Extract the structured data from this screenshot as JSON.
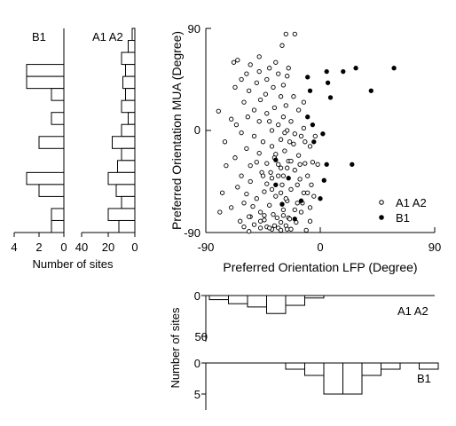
{
  "chart_data": [
    {
      "type": "scatter",
      "xlabel": "Preferred Orientation LFP (Degree)",
      "ylabel": "Preferred Orientation MUA (Degree)",
      "xlim": [
        -90,
        90
      ],
      "ylim": [
        -90,
        90
      ],
      "x_ticks": [
        "-90",
        "0",
        "90"
      ],
      "y_ticks": [
        "90",
        "0",
        "-90"
      ],
      "legend_position": "bottom-right",
      "series": [
        {
          "name": "A1 A2",
          "marker": "open-circle",
          "points": [
            [
              -27,
              85
            ],
            [
              -20,
              85
            ],
            [
              -30,
              75
            ],
            [
              -48,
              65
            ],
            [
              -68,
              60
            ],
            [
              -65,
              62
            ],
            [
              -55,
              58
            ],
            [
              -35,
              60
            ],
            [
              -25,
              55
            ],
            [
              -40,
              55
            ],
            [
              -48,
              52
            ],
            [
              -33,
              50
            ],
            [
              -58,
              50
            ],
            [
              -26,
              48
            ],
            [
              -62,
              45
            ],
            [
              -42,
              45
            ],
            [
              -50,
              42
            ],
            [
              -29,
              40
            ],
            [
              -67,
              38
            ],
            [
              -37,
              38
            ],
            [
              -56,
              35
            ],
            [
              -43,
              32
            ],
            [
              -31,
              30
            ],
            [
              -21,
              30
            ],
            [
              -47,
              27
            ],
            [
              -60,
              25
            ],
            [
              -13,
              25
            ],
            [
              -27,
              22
            ],
            [
              -36,
              20
            ],
            [
              -52,
              18
            ],
            [
              -17,
              18
            ],
            [
              -80,
              17
            ],
            [
              -42,
              15
            ],
            [
              -29,
              12
            ],
            [
              -57,
              12
            ],
            [
              -70,
              10
            ],
            [
              -23,
              8
            ],
            [
              -48,
              8
            ],
            [
              -33,
              5
            ],
            [
              -38,
              0
            ],
            [
              -13,
              2
            ],
            [
              -62,
              -2
            ],
            [
              -26,
              0
            ],
            [
              -52,
              -5
            ],
            [
              -15,
              -5
            ],
            [
              -31,
              -8
            ],
            [
              -75,
              -10
            ],
            [
              -45,
              -10
            ],
            [
              -21,
              -12
            ],
            [
              -38,
              -14
            ],
            [
              -8,
              -14
            ],
            [
              -58,
              -16
            ],
            [
              -28,
              -18
            ],
            [
              -48,
              -20
            ],
            [
              -17,
              -22
            ],
            [
              -36,
              -24
            ],
            [
              -67,
              -24
            ],
            [
              -25,
              -27
            ],
            [
              -42,
              -29
            ],
            [
              -12,
              -29
            ],
            [
              -55,
              -31
            ],
            [
              -31,
              -33
            ],
            [
              -20,
              -35
            ],
            [
              -46,
              -37
            ],
            [
              -74,
              -31
            ],
            [
              -29,
              -40
            ],
            [
              -38,
              -42
            ],
            [
              -16,
              -43
            ],
            [
              -55,
              -45
            ],
            [
              -30,
              -48
            ],
            [
              -65,
              -50
            ],
            [
              -23,
              -52
            ],
            [
              -44,
              -54
            ],
            [
              -13,
              -55
            ],
            [
              -77,
              -55
            ],
            [
              -35,
              -58
            ],
            [
              -50,
              -60
            ],
            [
              -26,
              -62
            ],
            [
              -60,
              -64
            ],
            [
              -18,
              -64
            ],
            [
              -40,
              -66
            ],
            [
              -70,
              -68
            ],
            [
              -29,
              -70
            ],
            [
              -47,
              -72
            ],
            [
              -15,
              -72
            ],
            [
              -79,
              -72
            ],
            [
              -37,
              -74
            ],
            [
              -55,
              -76
            ],
            [
              -25,
              -77
            ],
            [
              -44,
              -79
            ],
            [
              -63,
              -80
            ],
            [
              -31,
              -81
            ],
            [
              -19,
              -81
            ],
            [
              -52,
              -83
            ],
            [
              -36,
              -84
            ],
            [
              -27,
              -84
            ],
            [
              -42,
              -85
            ],
            [
              -60,
              -85
            ],
            [
              -33,
              -86
            ],
            [
              -47,
              -86
            ],
            [
              -26,
              -87
            ],
            [
              -38,
              -87
            ],
            [
              -23,
              -87
            ],
            [
              -31,
              -88
            ],
            [
              -56,
              -89
            ],
            [
              -40,
              -86
            ],
            [
              -10,
              -55
            ],
            [
              -8,
              -68
            ],
            [
              -5,
              -58
            ],
            [
              -12,
              -10
            ],
            [
              -20,
              -3
            ],
            [
              -40,
              8
            ],
            [
              -45,
              -40
            ],
            [
              -33,
              -30
            ],
            [
              -58,
              -56
            ],
            [
              -66,
              5
            ],
            [
              -10,
              -40
            ],
            [
              -8,
              -80
            ],
            [
              -27,
              -60
            ],
            [
              -34,
              -77
            ],
            [
              -6,
              -28
            ],
            [
              -4,
              -5
            ],
            [
              -28,
              -2
            ],
            [
              -38,
              -52
            ],
            [
              -18,
              -48
            ],
            [
              -24,
              -10
            ],
            [
              -44,
              -75
            ],
            [
              -53,
              -67
            ],
            [
              -35,
              -21
            ],
            [
              -16,
              -30
            ],
            [
              -50,
              -28
            ],
            [
              -62,
              -40
            ],
            [
              -30,
              -65
            ],
            [
              -20,
              -70
            ],
            [
              -42,
              -47
            ],
            [
              -23,
              -27
            ],
            [
              -56,
              -76
            ],
            [
              -11,
              -88
            ],
            [
              -47,
              -80
            ],
            [
              -2,
              -30
            ],
            [
              -7,
              -48
            ],
            [
              -14,
              -64
            ],
            [
              -24,
              -78
            ],
            [
              -33,
              -40
            ],
            [
              -26,
              -33
            ],
            [
              -39,
              -37
            ],
            [
              -31,
              -55
            ],
            [
              -29,
              -75
            ]
          ]
        },
        {
          "name": "B1",
          "marker": "filled-circle",
          "points": [
            [
              5,
              52
            ],
            [
              18,
              52
            ],
            [
              58,
              55
            ],
            [
              28,
              55
            ],
            [
              -10,
              47
            ],
            [
              6,
              42
            ],
            [
              40,
              35
            ],
            [
              8,
              29
            ],
            [
              -8,
              35
            ],
            [
              -10,
              12
            ],
            [
              -6,
              5
            ],
            [
              2,
              -3
            ],
            [
              -35,
              -26
            ],
            [
              -25,
              -42
            ],
            [
              -35,
              -48
            ],
            [
              -15,
              -62
            ],
            [
              -30,
              -65
            ],
            [
              -20,
              -78
            ],
            [
              -5,
              -10
            ],
            [
              25,
              -30
            ],
            [
              3,
              -44
            ],
            [
              0,
              -60
            ],
            [
              5,
              -30
            ]
          ]
        }
      ]
    },
    {
      "type": "bar",
      "orientation": "horizontal",
      "label": "B1",
      "xlabel": "Number of sites",
      "x_ticks": [
        "4",
        "2",
        "0"
      ],
      "xlim": [
        0,
        4
      ],
      "note": "bins span the MUA orientation axis from +90 (top) to -90 (bottom)",
      "values": [
        0,
        0,
        0,
        3,
        3,
        1,
        0,
        1,
        0,
        2,
        0,
        0,
        3,
        2,
        0,
        1,
        1
      ]
    },
    {
      "type": "bar",
      "orientation": "horizontal",
      "label": "A1 A2",
      "x_ticks": [
        "40",
        "20",
        "0"
      ],
      "xlim": [
        0,
        40
      ],
      "note": "bins span the MUA orientation axis from +90 (top) to -90 (bottom)",
      "values": [
        2,
        5,
        10,
        7,
        9,
        7,
        10,
        5,
        10,
        17,
        10,
        13,
        20,
        14,
        10,
        20,
        12
      ]
    },
    {
      "type": "bar",
      "label": "A1 A2",
      "ylabel": "Number of sites",
      "y_ticks": [
        "0",
        "50"
      ],
      "ylim": [
        0,
        50
      ],
      "note": "bins span the LFP orientation axis; bars hang downward from 0",
      "values": [
        5,
        10,
        14,
        22,
        12,
        3,
        0,
        0,
        0,
        0,
        0,
        0
      ]
    },
    {
      "type": "bar",
      "label": "B1",
      "y_ticks": [
        "0",
        "5"
      ],
      "ylim": [
        0,
        5
      ],
      "note": "bins span the LFP orientation axis; bars hang downward from 0",
      "values": [
        0,
        0,
        0,
        0,
        1,
        2,
        5,
        5,
        2,
        1,
        0,
        1
      ]
    }
  ]
}
